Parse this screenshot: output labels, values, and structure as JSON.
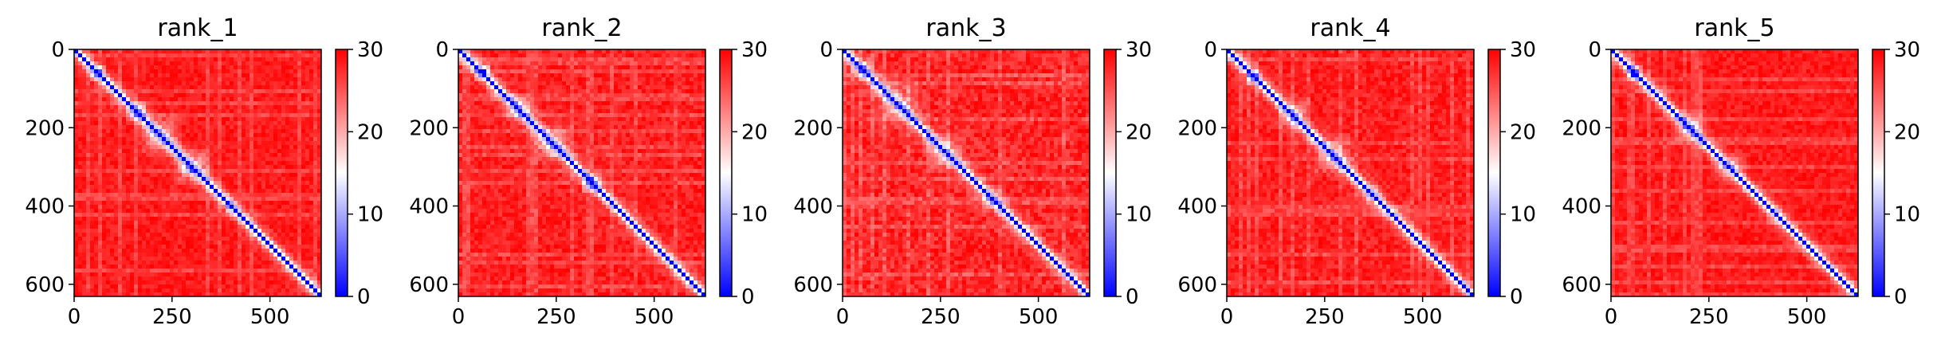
{
  "chart_data": [
    {
      "type": "heatmap",
      "title": "rank_1",
      "xlim": [
        0,
        631
      ],
      "ylim": [
        631,
        0
      ],
      "x_ticks": [
        "0",
        "250",
        "500"
      ],
      "y_ticks": [
        "0",
        "200",
        "400",
        "600"
      ],
      "colorbar": {
        "range": [
          0,
          30
        ],
        "ticks": [
          "0",
          "10",
          "20",
          "30"
        ],
        "colors": [
          "#0000ff",
          "#ffffff",
          "#ff0000"
        ]
      },
      "low_blocks": [
        {
          "center": 60,
          "half_width": 22,
          "level": 1.0
        },
        {
          "center": 160,
          "half_width": 30,
          "level": 0.8
        },
        {
          "center": 220,
          "half_width": 60,
          "level": 0.55
        },
        {
          "center": 300,
          "half_width": 55,
          "level": 0.6
        },
        {
          "center": 400,
          "half_width": 18,
          "level": 0.7
        }
      ],
      "background_level": 0.1
    },
    {
      "type": "heatmap",
      "title": "rank_2",
      "xlim": [
        0,
        631
      ],
      "ylim": [
        631,
        0
      ],
      "x_ticks": [
        "0",
        "250",
        "500"
      ],
      "y_ticks": [
        "0",
        "200",
        "400",
        "600"
      ],
      "colorbar": {
        "range": [
          0,
          30
        ],
        "ticks": [
          "0",
          "10",
          "20",
          "30"
        ],
        "colors": [
          "#0000ff",
          "#ffffff",
          "#ff0000"
        ]
      },
      "low_blocks": [
        {
          "center": 60,
          "half_width": 25,
          "level": 0.9
        },
        {
          "center": 150,
          "half_width": 40,
          "level": 0.6
        },
        {
          "center": 240,
          "half_width": 55,
          "level": 0.55
        },
        {
          "center": 340,
          "half_width": 30,
          "level": 0.8
        }
      ],
      "background_level": 0.12
    },
    {
      "type": "heatmap",
      "title": "rank_3",
      "xlim": [
        0,
        631
      ],
      "ylim": [
        631,
        0
      ],
      "x_ticks": [
        "0",
        "250",
        "500"
      ],
      "y_ticks": [
        "0",
        "200",
        "400",
        "600"
      ],
      "colorbar": {
        "range": [
          0,
          30
        ],
        "ticks": [
          "0",
          "10",
          "20",
          "30"
        ],
        "colors": [
          "#0000ff",
          "#ffffff",
          "#ff0000"
        ]
      },
      "low_blocks": [
        {
          "center": 50,
          "half_width": 30,
          "level": 0.7
        },
        {
          "center": 140,
          "half_width": 70,
          "level": 0.45
        },
        {
          "center": 260,
          "half_width": 60,
          "level": 0.4
        },
        {
          "center": 380,
          "half_width": 40,
          "level": 0.35
        }
      ],
      "background_level": 0.15
    },
    {
      "type": "heatmap",
      "title": "rank_4",
      "xlim": [
        0,
        631
      ],
      "ylim": [
        631,
        0
      ],
      "x_ticks": [
        "0",
        "250",
        "500"
      ],
      "y_ticks": [
        "0",
        "200",
        "400",
        "600"
      ],
      "colorbar": {
        "range": [
          0,
          30
        ],
        "ticks": [
          "0",
          "10",
          "20",
          "30"
        ],
        "colors": [
          "#0000ff",
          "#ffffff",
          "#ff0000"
        ]
      },
      "low_blocks": [
        {
          "center": 70,
          "half_width": 20,
          "level": 1.0
        },
        {
          "center": 170,
          "half_width": 45,
          "level": 0.55
        },
        {
          "center": 270,
          "half_width": 60,
          "level": 0.45
        },
        {
          "center": 370,
          "half_width": 30,
          "level": 0.5
        }
      ],
      "background_level": 0.12
    },
    {
      "type": "heatmap",
      "title": "rank_5",
      "xlim": [
        0,
        631
      ],
      "ylim": [
        631,
        0
      ],
      "x_ticks": [
        "0",
        "250",
        "500"
      ],
      "y_ticks": [
        "0",
        "200",
        "400",
        "600"
      ],
      "colorbar": {
        "range": [
          0,
          30
        ],
        "ticks": [
          "0",
          "10",
          "20",
          "30"
        ],
        "colors": [
          "#0000ff",
          "#ffffff",
          "#ff0000"
        ]
      },
      "low_blocks": [
        {
          "center": 60,
          "half_width": 20,
          "level": 1.0
        },
        {
          "center": 200,
          "half_width": 50,
          "level": 0.5
        },
        {
          "center": 300,
          "half_width": 45,
          "level": 0.45
        },
        {
          "center": 420,
          "half_width": 25,
          "level": 0.4
        }
      ],
      "background_level": 0.1
    }
  ]
}
